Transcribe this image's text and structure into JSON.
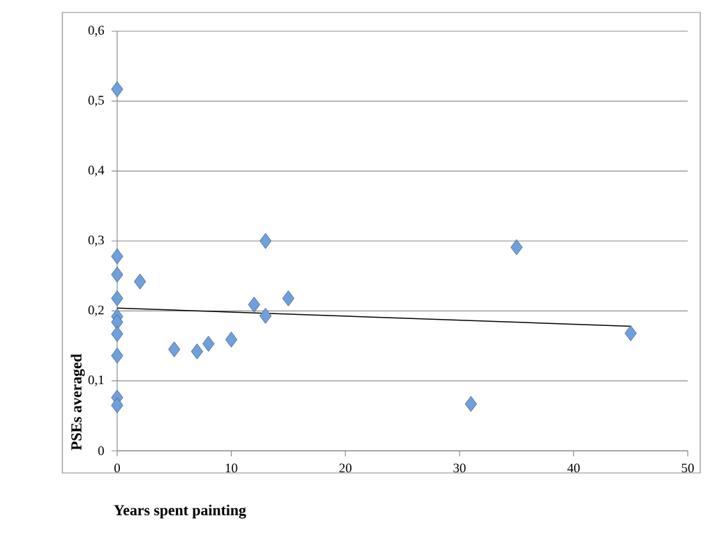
{
  "chart_data": {
    "type": "scatter",
    "xlabel": "Years spent painting",
    "ylabel": "PSEs averaged",
    "xlim": [
      0,
      50
    ],
    "ylim": [
      0,
      0.6
    ],
    "xticks": [
      0,
      10,
      20,
      30,
      40,
      50
    ],
    "yticks": [
      0,
      {
        "value": 0.1,
        "label": "0,1"
      },
      {
        "value": 0.2,
        "label": "0,2"
      },
      {
        "value": 0.3,
        "label": "0,3"
      },
      {
        "value": 0.4,
        "label": "0,4"
      },
      {
        "value": 0.5,
        "label": "0,5"
      },
      {
        "value": 0.6,
        "label": "0,6"
      }
    ],
    "grid": "y",
    "series": [
      {
        "marker": "diamond",
        "color": "#6fa0dc",
        "x": [
          0,
          0,
          0,
          0,
          0,
          0,
          0,
          0,
          0,
          0,
          2,
          5,
          7,
          8,
          10,
          12,
          13,
          13,
          15,
          31,
          35,
          45
        ],
        "values": [
          0.517,
          0.278,
          0.252,
          0.218,
          0.192,
          0.184,
          0.167,
          0.136,
          0.076,
          0.065,
          0.242,
          0.145,
          0.142,
          0.153,
          0.159,
          0.209,
          0.3,
          0.193,
          0.218,
          0.067,
          0.291,
          0.168
        ]
      },
      {
        "type": "line",
        "marker": "none",
        "line_style": "solid",
        "color": "#000000",
        "x": [
          0,
          45
        ],
        "values": [
          0.204,
          0.178
        ]
      }
    ]
  }
}
